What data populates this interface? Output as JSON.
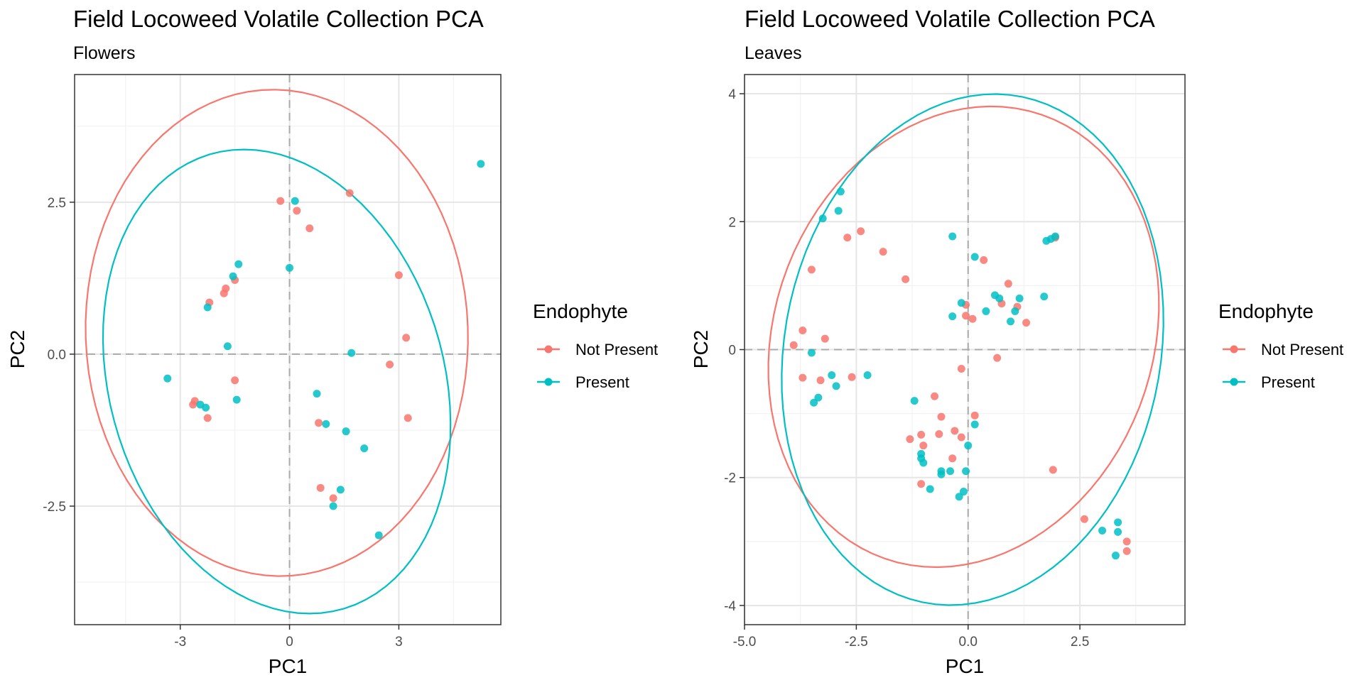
{
  "colors": {
    "not_present": "#F8766D",
    "present": "#00BFC4"
  },
  "chart_data": [
    {
      "type": "scatter",
      "title": "Field Locoweed Volatile Collection PCA",
      "subtitle": "Flowers",
      "xlabel": "PC1",
      "ylabel": "PC2",
      "xlim": [
        -5.9,
        5.8
      ],
      "ylim": [
        -4.45,
        4.6
      ],
      "xticks": [
        -3,
        0,
        3
      ],
      "xtick_labels": [
        "-3",
        "0",
        "3"
      ],
      "yticks": [
        -2.5,
        0,
        2.5
      ],
      "ytick_labels": [
        "-2.5",
        "0.0",
        "2.5"
      ],
      "grid": true,
      "zero_lines": true,
      "legend": {
        "title": "Endophyte",
        "position": "right",
        "entries": [
          "Not Present",
          "Present"
        ]
      },
      "series": [
        {
          "name": "Not Present",
          "color": "#F8766D",
          "points": [
            [
              -0.25,
              2.52
            ],
            [
              0.2,
              2.36
            ],
            [
              0.55,
              2.07
            ],
            [
              1.65,
              2.65
            ],
            [
              3.0,
              1.3
            ],
            [
              3.2,
              0.27
            ],
            [
              -1.5,
              1.22
            ],
            [
              -1.75,
              1.08
            ],
            [
              -1.8,
              1.0
            ],
            [
              -2.2,
              0.85
            ],
            [
              2.75,
              -0.17
            ],
            [
              3.25,
              -1.05
            ],
            [
              -1.5,
              -0.43
            ],
            [
              -2.6,
              -0.77
            ],
            [
              -2.65,
              -0.83
            ],
            [
              -2.25,
              -1.05
            ],
            [
              0.8,
              -1.13
            ],
            [
              0.85,
              -2.2
            ],
            [
              1.2,
              -2.37
            ]
          ]
        },
        {
          "name": "Present",
          "color": "#00BFC4",
          "points": [
            [
              5.25,
              3.13
            ],
            [
              0.15,
              2.52
            ],
            [
              0.0,
              1.42
            ],
            [
              -1.4,
              1.48
            ],
            [
              -1.55,
              1.28
            ],
            [
              -2.25,
              0.77
            ],
            [
              -1.7,
              0.13
            ],
            [
              1.7,
              0.02
            ],
            [
              -3.35,
              -0.4
            ],
            [
              -1.45,
              -0.75
            ],
            [
              -2.45,
              -0.83
            ],
            [
              -2.3,
              -0.88
            ],
            [
              0.75,
              -0.65
            ],
            [
              1.0,
              -1.15
            ],
            [
              1.55,
              -1.27
            ],
            [
              2.05,
              -1.55
            ],
            [
              1.4,
              -2.23
            ],
            [
              1.2,
              -2.5
            ],
            [
              2.45,
              -2.98
            ]
          ]
        }
      ],
      "ellipses": [
        {
          "series": "Not Present",
          "center": [
            -0.35,
            0.35
          ],
          "rx": 5.25,
          "ry": 4.0,
          "angle_deg": -2
        },
        {
          "series": "Present",
          "center": [
            -0.35,
            -0.45
          ],
          "rx": 4.9,
          "ry": 3.65,
          "angle_deg": -20
        }
      ]
    },
    {
      "type": "scatter",
      "title": "Field Locoweed Volatile Collection PCA",
      "subtitle": "Leaves",
      "xlabel": "PC1",
      "ylabel": "PC2",
      "xlim": [
        -5.0,
        4.85
      ],
      "ylim": [
        -4.3,
        4.3
      ],
      "xticks": [
        -5.0,
        -2.5,
        0.0,
        2.5
      ],
      "xtick_labels": [
        "-5.0",
        "-2.5",
        "0.0",
        "2.5"
      ],
      "yticks": [
        -4,
        -2,
        0,
        2,
        4
      ],
      "ytick_labels": [
        "-4",
        "-2",
        "0",
        "2",
        "4"
      ],
      "grid": true,
      "zero_lines": true,
      "legend": {
        "title": "Endophyte",
        "position": "right",
        "entries": [
          "Not Present",
          "Present"
        ]
      },
      "series": [
        {
          "name": "Not Present",
          "color": "#F8766D",
          "points": [
            [
              -2.7,
              1.75
            ],
            [
              -2.4,
              1.85
            ],
            [
              -1.9,
              1.53
            ],
            [
              -1.4,
              1.1
            ],
            [
              -3.5,
              1.25
            ],
            [
              0.35,
              1.4
            ],
            [
              0.9,
              1.03
            ],
            [
              1.1,
              0.67
            ],
            [
              0.75,
              0.72
            ],
            [
              1.3,
              0.42
            ],
            [
              -0.05,
              0.7
            ],
            [
              -0.05,
              0.53
            ],
            [
              0.1,
              0.48
            ],
            [
              -3.7,
              0.3
            ],
            [
              -3.9,
              0.07
            ],
            [
              -3.2,
              0.17
            ],
            [
              -3.3,
              -0.48
            ],
            [
              -3.7,
              -0.44
            ],
            [
              -2.6,
              -0.43
            ],
            [
              -0.15,
              -0.3
            ],
            [
              0.65,
              -0.13
            ],
            [
              -0.75,
              -0.73
            ],
            [
              -0.6,
              -1.05
            ],
            [
              -1.3,
              -1.4
            ],
            [
              -1.05,
              -1.33
            ],
            [
              -0.65,
              -1.32
            ],
            [
              -0.3,
              -1.27
            ],
            [
              -0.15,
              -1.37
            ],
            [
              0.15,
              -1.03
            ],
            [
              -1.0,
              -1.5
            ],
            [
              -0.35,
              -1.7
            ],
            [
              -1.05,
              -2.1
            ],
            [
              1.9,
              -1.88
            ],
            [
              2.6,
              -2.65
            ],
            [
              3.55,
              -3.0
            ],
            [
              3.55,
              -3.15
            ],
            [
              1.95,
              1.75
            ]
          ]
        },
        {
          "name": "Present",
          "color": "#00BFC4",
          "points": [
            [
              -2.85,
              2.47
            ],
            [
              -2.9,
              2.17
            ],
            [
              -3.25,
              2.05
            ],
            [
              -0.35,
              1.77
            ],
            [
              0.15,
              1.45
            ],
            [
              1.75,
              1.7
            ],
            [
              1.85,
              1.73
            ],
            [
              1.95,
              1.77
            ],
            [
              1.7,
              0.83
            ],
            [
              1.15,
              0.8
            ],
            [
              0.6,
              0.85
            ],
            [
              0.7,
              0.8
            ],
            [
              1.05,
              0.6
            ],
            [
              0.95,
              0.44
            ],
            [
              0.4,
              0.6
            ],
            [
              -0.15,
              0.73
            ],
            [
              -0.35,
              0.52
            ],
            [
              -3.5,
              -0.05
            ],
            [
              -3.05,
              -0.4
            ],
            [
              -2.95,
              -0.57
            ],
            [
              -2.25,
              -0.4
            ],
            [
              -3.35,
              -0.75
            ],
            [
              -3.45,
              -0.83
            ],
            [
              -1.2,
              -0.8
            ],
            [
              0.15,
              -1.17
            ],
            [
              0.0,
              -1.5
            ],
            [
              -1.05,
              -1.63
            ],
            [
              -1.0,
              -1.77
            ],
            [
              -0.6,
              -1.9
            ],
            [
              -0.6,
              -1.95
            ],
            [
              -0.4,
              -1.9
            ],
            [
              -0.05,
              -1.9
            ],
            [
              -0.85,
              -2.18
            ],
            [
              -0.1,
              -2.22
            ],
            [
              -0.2,
              -2.3
            ],
            [
              -1.05,
              -1.7
            ],
            [
              3.0,
              -2.83
            ],
            [
              3.35,
              -2.7
            ],
            [
              3.35,
              -2.85
            ],
            [
              3.3,
              -3.22
            ]
          ]
        }
      ],
      "ellipses": [
        {
          "series": "Not Present",
          "center": [
            -0.1,
            0.2
          ],
          "rx": 4.45,
          "ry": 3.5,
          "angle_deg": 18
        },
        {
          "series": "Present",
          "center": [
            0.1,
            0.0
          ],
          "rx": 4.4,
          "ry": 3.85,
          "angle_deg": 30
        }
      ]
    }
  ]
}
